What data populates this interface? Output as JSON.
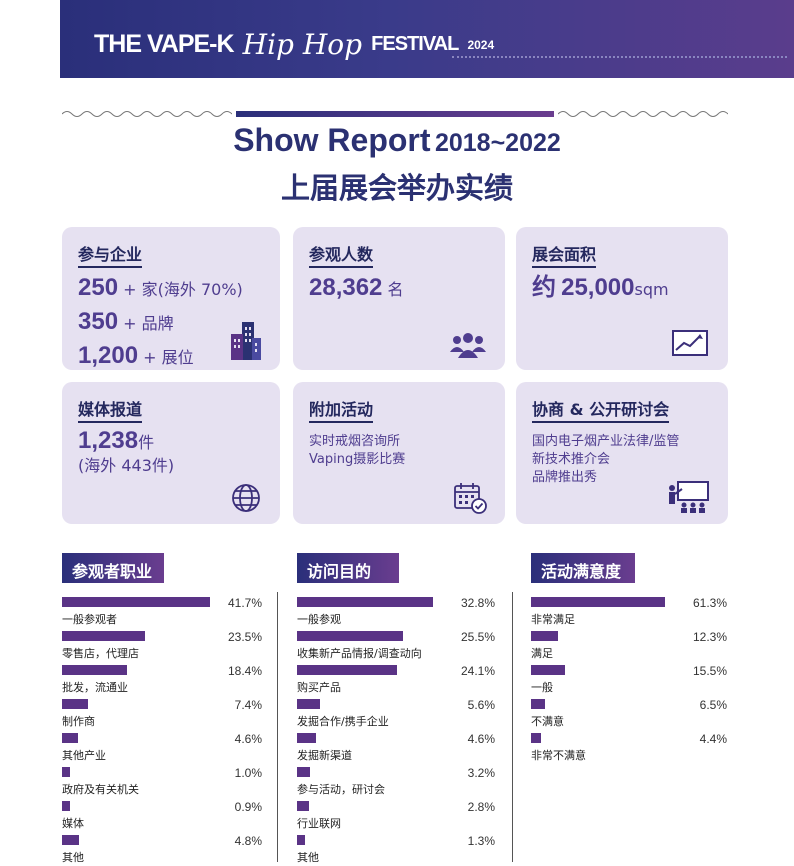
{
  "header": {
    "logo_part1": "THE VAPE-K",
    "logo_part2": "Hip Hop",
    "logo_part3": "FESTIVAL",
    "logo_year": "2024"
  },
  "title": {
    "en": "Show Report",
    "years": "2018~2022",
    "cn": "上届展会举办实绩"
  },
  "cards": {
    "participants": {
      "head": "参与企业",
      "l1_num": "250",
      "l1_unit": "+ 家(海外 70%)",
      "l2_num": "350",
      "l2_unit": "+ 品牌",
      "l3_num": "1,200",
      "l3_unit": "+ 展位",
      "icon": "buildings-icon"
    },
    "visitors": {
      "head": "参观人数",
      "num": "28,362",
      "unit": "名",
      "icon": "people-icon"
    },
    "area": {
      "head": "展会面积",
      "prefix": "约",
      "num": "25,000",
      "unit": "sqm",
      "icon": "chart-board-icon"
    },
    "media": {
      "head": "媒体报道",
      "num": "1,238",
      "unit": "件",
      "sub": "(海外 443件)",
      "icon": "globe-icon"
    },
    "extra": {
      "head": "附加活动",
      "lines": [
        "实时戒烟咨询所",
        "Vaping摄影比赛"
      ],
      "icon": "calendar-check-icon"
    },
    "seminar": {
      "head": "协商 & 公开研讨会",
      "lines": [
        "国内电子烟产业法律/监管",
        "新技术推介会",
        "品牌推出秀"
      ],
      "icon": "presentation-icon"
    }
  },
  "accent_color": "#5a3386",
  "chart_data": [
    {
      "type": "bar",
      "title": "参观者职业",
      "categories": [
        "一般参观者",
        "零售店，代理店",
        "批发，流通业",
        "制作商",
        "其他产业",
        "政府及有关机关",
        "媒体",
        "其他"
      ],
      "values": [
        41.7,
        23.5,
        18.4,
        7.4,
        4.6,
        1.0,
        0.9,
        4.8
      ],
      "labels": [
        "41.7%",
        "23.5%",
        "18.4%",
        "7.4%",
        "4.6%",
        "1.0%",
        "0.9%",
        "4.8%"
      ]
    },
    {
      "type": "bar",
      "title": "访问目的",
      "categories": [
        "一般参观",
        "收集新产品情报/调查动向",
        "购买产品",
        "发掘合作/携手企业",
        "发掘新渠道",
        "参与活动，研讨会",
        "行业联网",
        "其他"
      ],
      "values": [
        32.8,
        25.5,
        24.1,
        5.6,
        4.6,
        3.2,
        2.8,
        1.3
      ],
      "labels": [
        "32.8%",
        "25.5%",
        "24.1%",
        "5.6%",
        "4.6%",
        "3.2%",
        "2.8%",
        "1.3%"
      ]
    },
    {
      "type": "bar",
      "title": "活动满意度",
      "categories": [
        "非常满足",
        "满足",
        "一般",
        "不满意",
        "非常不满意"
      ],
      "values": [
        61.3,
        12.3,
        15.5,
        6.5,
        4.4
      ],
      "labels": [
        "61.3%",
        "12.3%",
        "15.5%",
        "6.5%",
        "4.4%"
      ]
    }
  ]
}
